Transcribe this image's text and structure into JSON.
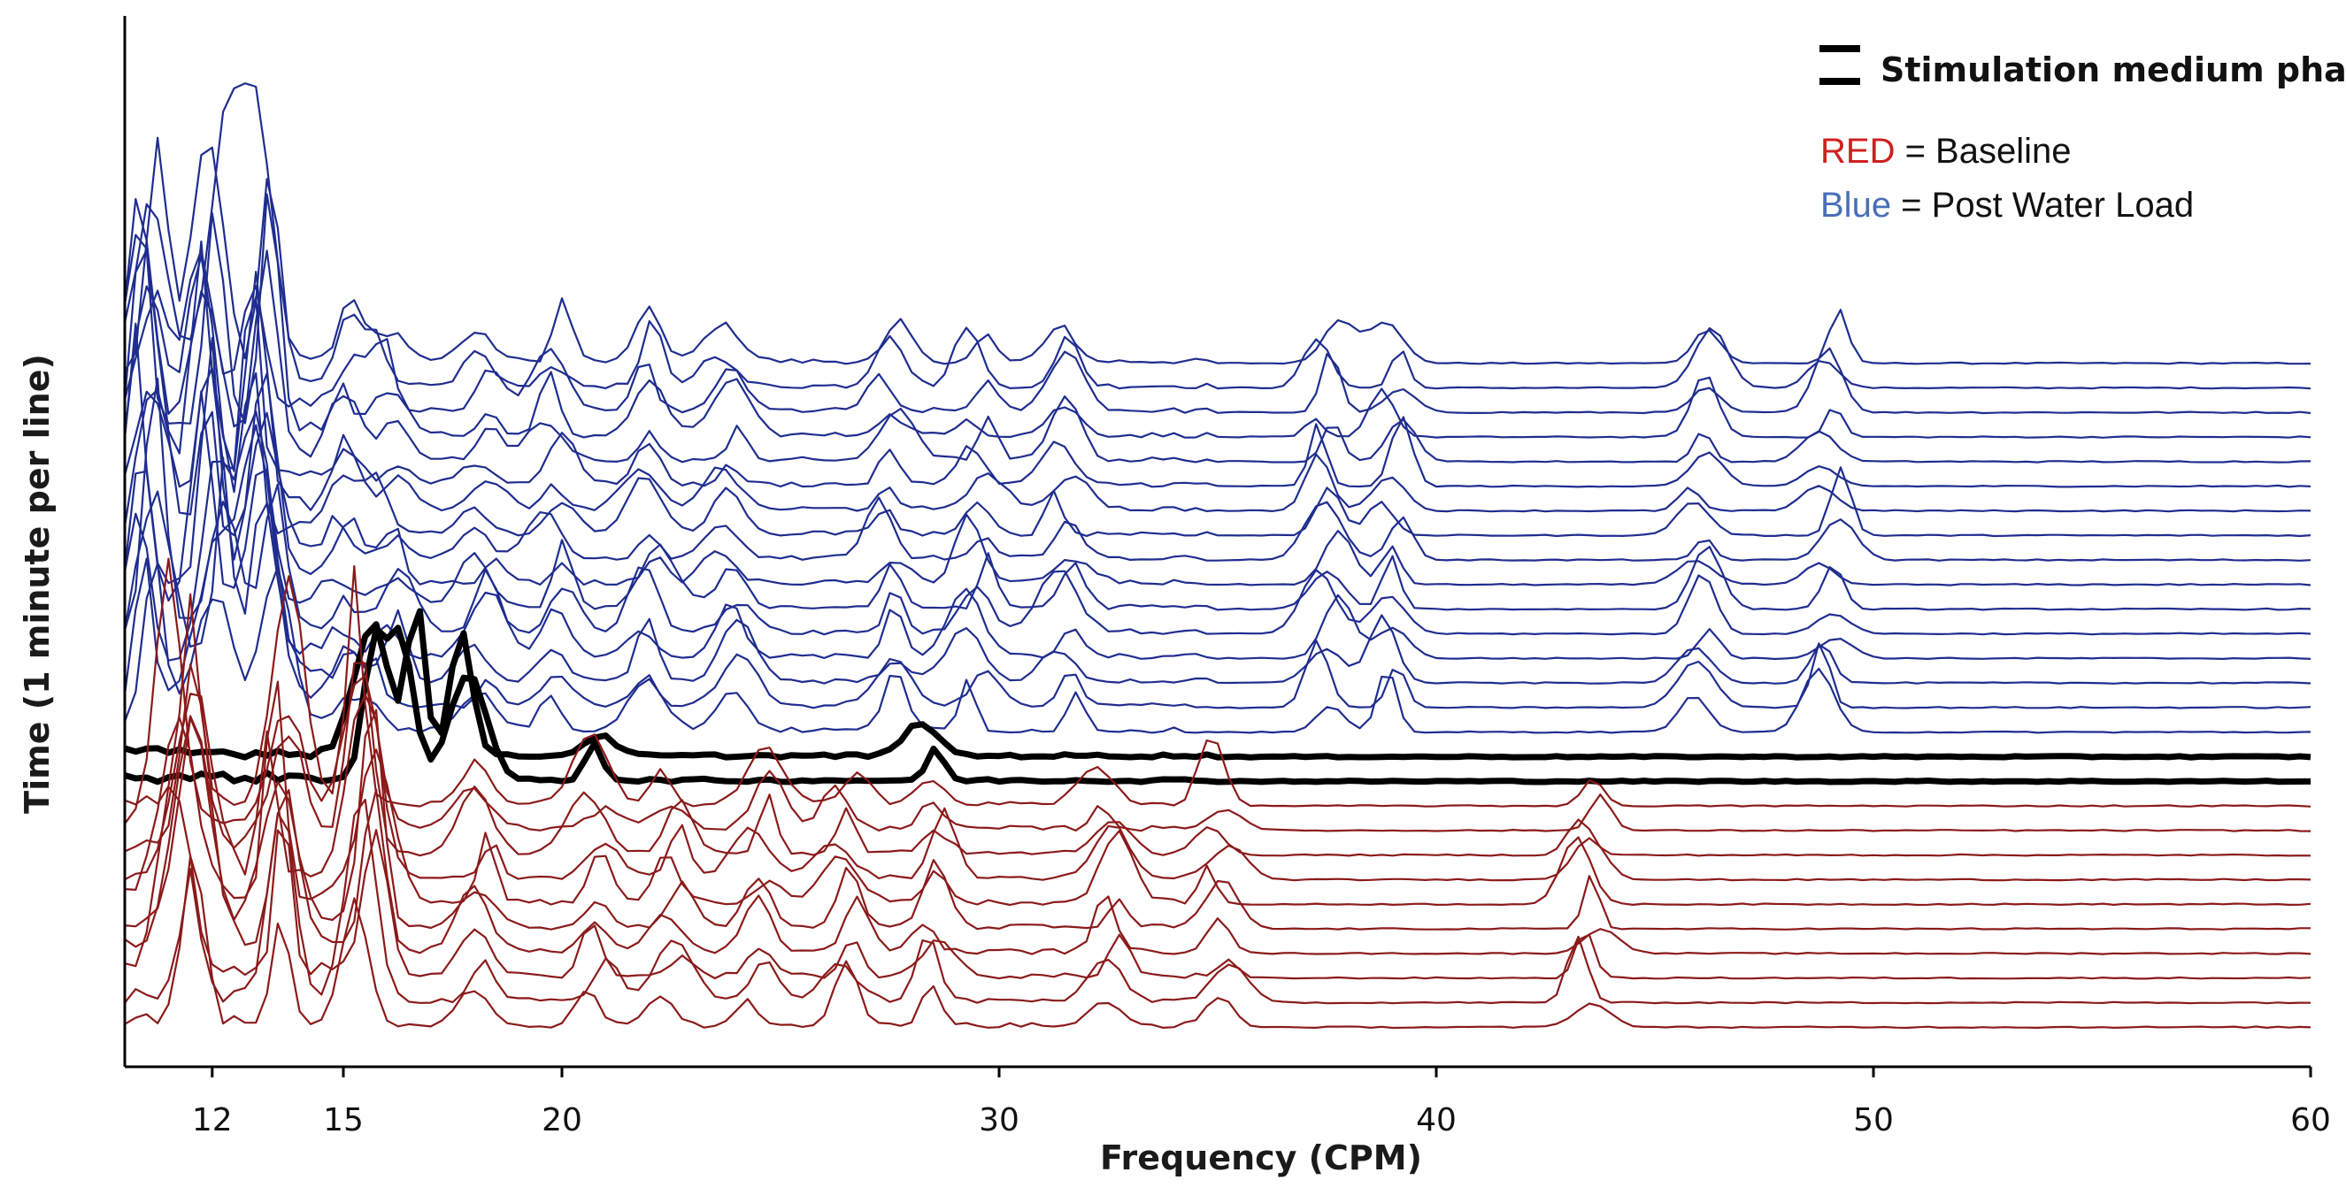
{
  "chart_data": {
    "type": "line",
    "subtype": "waterfall-spectrogram",
    "title": "",
    "xlabel": "Frequency (CPM)",
    "ylabel": "Time (1 minute per line)",
    "xlim": [
      10,
      60
    ],
    "xticks": [
      12,
      15,
      20,
      30,
      40,
      50,
      60
    ],
    "grid": false,
    "legend": {
      "position": "top-right",
      "phase_label": "Stimulation medium phase",
      "red_key": "RED",
      "red_text": " = Baseline",
      "blue_key": "Blue",
      "blue_text": " = Post Water Load"
    },
    "colors": {
      "baseline": "#8b1a1a",
      "post_water_load": "#1f2d8f",
      "stimulation_phase": "#000000",
      "legend_red": "#d0201f",
      "legend_blue": "#4a6fb8"
    },
    "series": [
      {
        "name": "Baseline",
        "lines": 10,
        "dominant_peaks_cpm": [
          11.3,
          13.5,
          15.5,
          18.2,
          20.8,
          22.5,
          24.5,
          26.5,
          28.5,
          32.5,
          35,
          43.5
        ]
      },
      {
        "name": "Stimulation medium phase",
        "lines": 2,
        "dominant_peaks_cpm": [
          15.5,
          16.5,
          18.0,
          21.0,
          28.3
        ]
      },
      {
        "name": "Post Water Load",
        "lines": 16,
        "dominant_peaks_cpm": [
          10.5,
          12.0,
          13.2,
          15.0,
          16.0,
          18.2,
          19.8,
          22.0,
          23.8,
          27.5,
          29.5,
          31.5,
          37.5,
          39.0,
          46.0,
          49.0
        ]
      }
    ]
  }
}
